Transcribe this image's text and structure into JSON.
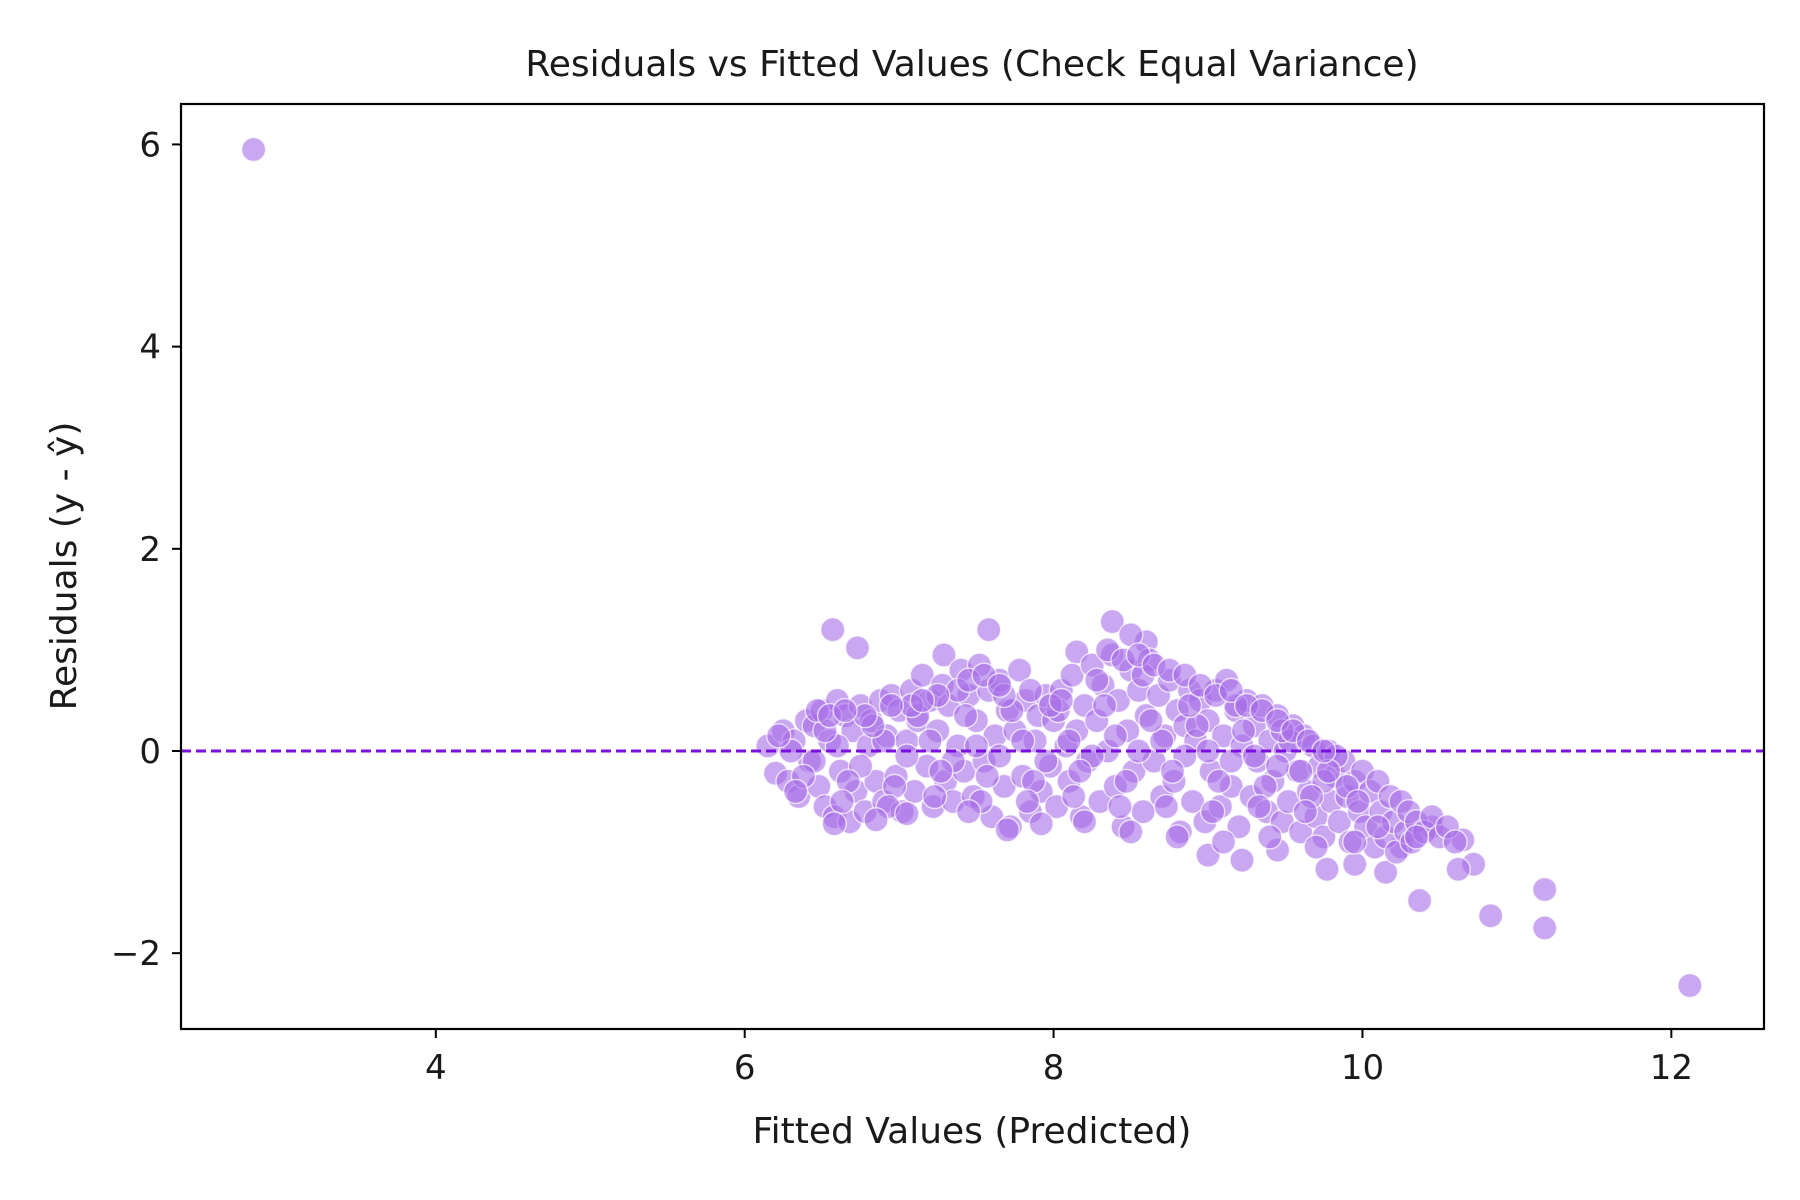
{
  "chart_data": {
    "type": "scatter",
    "title": "Residuals vs Fitted Values (Check Equal Variance)",
    "xlabel": "Fitted Values (Predicted)",
    "ylabel": "Residuals (y - ŷ)",
    "xlim": [
      2.35,
      12.6
    ],
    "ylim": [
      -2.75,
      6.4
    ],
    "xticks": [
      4,
      6,
      8,
      10,
      12
    ],
    "yticks": [
      -2,
      0,
      2,
      4,
      6
    ],
    "grid": false,
    "reference_line": {
      "y": 0,
      "style": "dashed",
      "color": "#7a10e0"
    },
    "point_color": "#a66de8",
    "point_alpha": 0.6,
    "point_edge_color": "#ffffff",
    "series": [
      {
        "points": [
          [
            2.82,
            5.95
          ],
          [
            12.12,
            -2.32
          ],
          [
            11.18,
            -1.75
          ],
          [
            11.18,
            -1.37
          ],
          [
            10.83,
            -1.63
          ],
          [
            10.37,
            -1.48
          ],
          [
            10.72,
            -1.12
          ],
          [
            10.62,
            -1.17
          ],
          [
            10.15,
            -1.2
          ],
          [
            9.77,
            -1.17
          ],
          [
            6.57,
            1.2
          ],
          [
            6.73,
            1.02
          ],
          [
            7.58,
            1.2
          ],
          [
            8.38,
            1.28
          ],
          [
            7.29,
            0.95
          ],
          [
            8.15,
            0.98
          ],
          [
            9.22,
            -1.08
          ],
          [
            9.45,
            -0.98
          ],
          [
            9.0,
            -1.03
          ],
          [
            9.95,
            -1.12
          ],
          [
            10.65,
            -0.88
          ],
          [
            10.45,
            -0.75
          ],
          [
            10.25,
            -0.95
          ],
          [
            8.6,
            1.08
          ],
          [
            8.5,
            1.15
          ],
          [
            6.15,
            0.05
          ],
          [
            6.2,
            -0.22
          ],
          [
            6.25,
            0.2
          ],
          [
            6.28,
            -0.3
          ],
          [
            6.32,
            0.1
          ],
          [
            6.35,
            -0.45
          ],
          [
            6.4,
            0.3
          ],
          [
            6.42,
            -0.1
          ],
          [
            6.45,
            0.25
          ],
          [
            6.48,
            -0.35
          ],
          [
            6.5,
            0.4
          ],
          [
            6.52,
            -0.55
          ],
          [
            6.55,
            0.1
          ],
          [
            6.58,
            -0.65
          ],
          [
            6.6,
            0.5
          ],
          [
            6.62,
            -0.2
          ],
          [
            6.65,
            0.35
          ],
          [
            6.68,
            -0.7
          ],
          [
            6.7,
            0.2
          ],
          [
            6.72,
            -0.4
          ],
          [
            6.75,
            0.45
          ],
          [
            6.78,
            -0.6
          ],
          [
            6.8,
            0.05
          ],
          [
            6.82,
            0.3
          ],
          [
            6.85,
            -0.3
          ],
          [
            6.88,
            0.5
          ],
          [
            6.9,
            -0.5
          ],
          [
            6.92,
            0.15
          ],
          [
            6.95,
            0.55
          ],
          [
            6.98,
            -0.25
          ],
          [
            7.0,
            0.4
          ],
          [
            7.02,
            -0.6
          ],
          [
            7.05,
            0.1
          ],
          [
            7.08,
            0.6
          ],
          [
            7.1,
            -0.4
          ],
          [
            7.12,
            0.3
          ],
          [
            7.15,
            0.75
          ],
          [
            7.18,
            -0.15
          ],
          [
            7.2,
            0.5
          ],
          [
            7.22,
            -0.55
          ],
          [
            7.25,
            0.2
          ],
          [
            7.28,
            0.65
          ],
          [
            7.3,
            -0.3
          ],
          [
            7.32,
            0.45
          ],
          [
            7.35,
            -0.5
          ],
          [
            7.38,
            0.05
          ],
          [
            7.4,
            0.8
          ],
          [
            7.42,
            -0.2
          ],
          [
            7.45,
            0.55
          ],
          [
            7.48,
            -0.45
          ],
          [
            7.5,
            0.3
          ],
          [
            7.52,
            0.85
          ],
          [
            7.55,
            -0.1
          ],
          [
            7.58,
            0.6
          ],
          [
            7.6,
            -0.65
          ],
          [
            7.62,
            0.15
          ],
          [
            7.65,
            0.7
          ],
          [
            7.68,
            -0.35
          ],
          [
            7.7,
            0.4
          ],
          [
            7.72,
            -0.75
          ],
          [
            7.75,
            0.2
          ],
          [
            7.78,
            0.8
          ],
          [
            7.8,
            -0.25
          ],
          [
            7.82,
            0.5
          ],
          [
            7.85,
            -0.6
          ],
          [
            7.88,
            0.1
          ],
          [
            7.9,
            0.35
          ],
          [
            7.92,
            -0.4
          ],
          [
            7.95,
            0.55
          ],
          [
            7.98,
            -0.15
          ],
          [
            8.0,
            0.3
          ],
          [
            8.02,
            -0.55
          ],
          [
            8.05,
            0.6
          ],
          [
            8.08,
            0.05
          ],
          [
            8.1,
            -0.3
          ],
          [
            8.12,
            0.75
          ],
          [
            8.15,
            0.2
          ],
          [
            8.18,
            -0.65
          ],
          [
            8.2,
            0.45
          ],
          [
            8.22,
            -0.1
          ],
          [
            8.25,
            0.85
          ],
          [
            8.28,
            0.3
          ],
          [
            8.3,
            -0.5
          ],
          [
            8.32,
            0.65
          ],
          [
            8.35,
            0.0
          ],
          [
            8.38,
            0.95
          ],
          [
            8.4,
            -0.35
          ],
          [
            8.42,
            0.5
          ],
          [
            8.45,
            -0.75
          ],
          [
            8.48,
            0.2
          ],
          [
            8.5,
            0.8
          ],
          [
            8.52,
            -0.2
          ],
          [
            8.55,
            0.6
          ],
          [
            8.58,
            -0.6
          ],
          [
            8.6,
            0.35
          ],
          [
            8.62,
            0.9
          ],
          [
            8.65,
            -0.1
          ],
          [
            8.68,
            0.55
          ],
          [
            8.7,
            -0.45
          ],
          [
            8.72,
            0.15
          ],
          [
            8.75,
            0.7
          ],
          [
            8.78,
            -0.3
          ],
          [
            8.8,
            0.4
          ],
          [
            8.82,
            -0.8
          ],
          [
            8.85,
            0.25
          ],
          [
            8.88,
            0.6
          ],
          [
            8.9,
            -0.5
          ],
          [
            8.92,
            0.1
          ],
          [
            8.95,
            0.5
          ],
          [
            8.98,
            -0.7
          ],
          [
            9.0,
            0.3
          ],
          [
            9.02,
            -0.2
          ],
          [
            9.05,
            0.6
          ],
          [
            9.08,
            -0.55
          ],
          [
            9.1,
            0.15
          ],
          [
            9.12,
            0.7
          ],
          [
            9.15,
            -0.35
          ],
          [
            9.18,
            0.4
          ],
          [
            9.2,
            -0.75
          ],
          [
            9.22,
            0.05
          ],
          [
            9.25,
            0.5
          ],
          [
            9.28,
            -0.45
          ],
          [
            9.3,
            0.25
          ],
          [
            9.32,
            -0.1
          ],
          [
            9.35,
            0.45
          ],
          [
            9.38,
            -0.6
          ],
          [
            9.4,
            0.1
          ],
          [
            9.42,
            -0.3
          ],
          [
            9.45,
            0.35
          ],
          [
            9.48,
            -0.7
          ],
          [
            9.5,
            0.0
          ],
          [
            9.52,
            -0.5
          ],
          [
            9.55,
            0.25
          ],
          [
            9.58,
            -0.2
          ],
          [
            9.6,
            -0.8
          ],
          [
            9.62,
            0.15
          ],
          [
            9.65,
            -0.4
          ],
          [
            9.68,
            0.05
          ],
          [
            9.7,
            -0.65
          ],
          [
            9.72,
            -0.15
          ],
          [
            9.75,
            -0.85
          ],
          [
            9.78,
            0.0
          ],
          [
            9.8,
            -0.5
          ],
          [
            9.82,
            -0.25
          ],
          [
            9.85,
            -0.7
          ],
          [
            9.88,
            -0.1
          ],
          [
            9.9,
            -0.45
          ],
          [
            9.92,
            -0.9
          ],
          [
            9.95,
            -0.3
          ],
          [
            9.98,
            -0.6
          ],
          [
            10.0,
            -0.2
          ],
          [
            10.02,
            -0.75
          ],
          [
            10.05,
            -0.4
          ],
          [
            10.08,
            -0.95
          ],
          [
            10.1,
            -0.3
          ],
          [
            10.12,
            -0.6
          ],
          [
            10.15,
            -0.85
          ],
          [
            10.18,
            -0.45
          ],
          [
            10.2,
            -0.7
          ],
          [
            10.22,
            -1.0
          ],
          [
            10.25,
            -0.5
          ],
          [
            10.28,
            -0.8
          ],
          [
            10.3,
            -0.6
          ],
          [
            10.32,
            -0.9
          ],
          [
            10.35,
            -0.7
          ],
          [
            10.4,
            -0.8
          ],
          [
            10.45,
            -0.65
          ],
          [
            10.5,
            -0.85
          ],
          [
            10.55,
            -0.75
          ],
          [
            10.6,
            -0.9
          ],
          [
            6.3,
            0.0
          ],
          [
            6.45,
            -0.1
          ],
          [
            6.6,
            0.05
          ],
          [
            6.75,
            -0.15
          ],
          [
            6.9,
            0.1
          ],
          [
            7.05,
            -0.05
          ],
          [
            7.2,
            0.1
          ],
          [
            7.35,
            -0.1
          ],
          [
            7.5,
            0.05
          ],
          [
            7.65,
            -0.05
          ],
          [
            7.8,
            0.1
          ],
          [
            7.95,
            -0.1
          ],
          [
            8.1,
            0.1
          ],
          [
            8.25,
            -0.05
          ],
          [
            8.4,
            0.15
          ],
          [
            8.55,
            0.0
          ],
          [
            8.7,
            0.1
          ],
          [
            8.85,
            -0.05
          ],
          [
            9.0,
            0.0
          ],
          [
            9.15,
            -0.1
          ],
          [
            9.3,
            -0.05
          ],
          [
            9.45,
            -0.15
          ],
          [
            9.6,
            -0.2
          ],
          [
            9.75,
            -0.3
          ],
          [
            9.9,
            -0.35
          ],
          [
            6.38,
            -0.25
          ],
          [
            6.52,
            0.2
          ],
          [
            6.67,
            -0.3
          ],
          [
            6.83,
            0.25
          ],
          [
            6.97,
            -0.35
          ],
          [
            7.12,
            0.35
          ],
          [
            7.27,
            -0.2
          ],
          [
            7.43,
            0.35
          ],
          [
            7.57,
            -0.25
          ],
          [
            7.73,
            0.4
          ],
          [
            7.87,
            -0.3
          ],
          [
            8.03,
            0.4
          ],
          [
            8.17,
            -0.2
          ],
          [
            8.33,
            0.45
          ],
          [
            8.47,
            -0.3
          ],
          [
            8.63,
            0.3
          ],
          [
            8.77,
            -0.2
          ],
          [
            8.93,
            0.25
          ],
          [
            9.07,
            -0.3
          ],
          [
            9.23,
            0.2
          ],
          [
            9.37,
            -0.35
          ],
          [
            9.53,
            0.1
          ],
          [
            9.67,
            -0.45
          ],
          [
            9.83,
            -0.05
          ],
          [
            9.97,
            -0.5
          ],
          [
            6.22,
            0.15
          ],
          [
            6.33,
            -0.4
          ],
          [
            6.47,
            0.4
          ],
          [
            6.63,
            -0.5
          ],
          [
            6.78,
            0.35
          ],
          [
            6.93,
            -0.55
          ],
          [
            7.08,
            0.45
          ],
          [
            7.23,
            -0.45
          ],
          [
            7.38,
            0.6
          ],
          [
            7.53,
            -0.5
          ],
          [
            7.68,
            0.55
          ],
          [
            7.83,
            -0.5
          ],
          [
            7.98,
            0.45
          ],
          [
            8.13,
            -0.45
          ],
          [
            8.28,
            0.7
          ],
          [
            8.43,
            -0.55
          ],
          [
            8.58,
            0.75
          ],
          [
            8.73,
            -0.55
          ],
          [
            8.88,
            0.45
          ],
          [
            9.03,
            -0.6
          ],
          [
            9.18,
            0.45
          ],
          [
            9.33,
            -0.55
          ],
          [
            9.48,
            0.2
          ],
          [
            9.63,
            -0.6
          ],
          [
            9.78,
            -0.2
          ],
          [
            8.35,
            1.0
          ],
          [
            8.45,
            0.9
          ],
          [
            8.55,
            0.95
          ],
          [
            8.65,
            0.85
          ],
          [
            8.75,
            0.8
          ],
          [
            8.85,
            0.75
          ],
          [
            8.95,
            0.65
          ],
          [
            9.05,
            0.55
          ],
          [
            9.15,
            0.6
          ],
          [
            9.25,
            0.45
          ],
          [
            9.35,
            0.4
          ],
          [
            9.45,
            0.3
          ],
          [
            9.55,
            0.2
          ],
          [
            9.65,
            0.1
          ],
          [
            9.75,
            0.0
          ],
          [
            7.45,
            0.7
          ],
          [
            7.55,
            0.75
          ],
          [
            7.65,
            0.65
          ],
          [
            7.25,
            0.55
          ],
          [
            7.15,
            0.5
          ],
          [
            6.55,
            0.35
          ],
          [
            6.65,
            0.4
          ],
          [
            6.95,
            0.45
          ],
          [
            7.85,
            0.6
          ],
          [
            8.05,
            0.5
          ],
          [
            6.58,
            -0.72
          ],
          [
            6.85,
            -0.68
          ],
          [
            7.05,
            -0.62
          ],
          [
            7.45,
            -0.6
          ],
          [
            7.7,
            -0.78
          ],
          [
            7.92,
            -0.72
          ],
          [
            8.2,
            -0.7
          ],
          [
            8.5,
            -0.8
          ],
          [
            8.8,
            -0.85
          ],
          [
            9.1,
            -0.9
          ],
          [
            9.4,
            -0.85
          ],
          [
            9.7,
            -0.95
          ],
          [
            9.95,
            -0.9
          ],
          [
            10.1,
            -0.75
          ],
          [
            10.35,
            -0.85
          ]
        ]
      }
    ]
  }
}
